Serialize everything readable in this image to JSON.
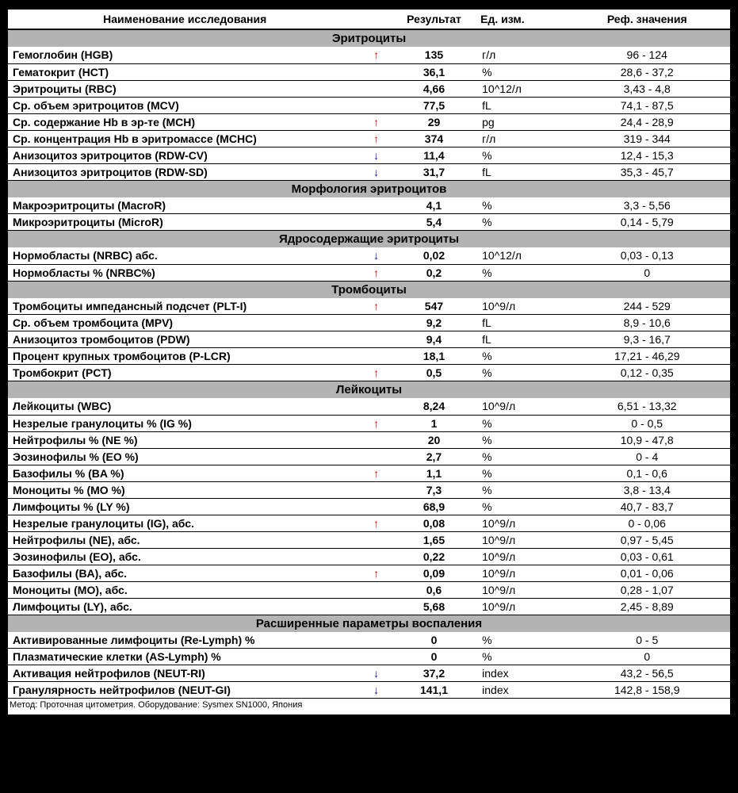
{
  "headers": {
    "name": "Наименование исследования",
    "result": "Результат",
    "unit": "Ед. изм.",
    "ref": "Реф. значения"
  },
  "arrow_glyphs": {
    "up": "↑",
    "down": "↓"
  },
  "arrow_colors": {
    "up": "#e60000",
    "down": "#0000cc"
  },
  "section_bg": "#b3b3b3",
  "sections": [
    {
      "title": "Эритроциты",
      "rows": [
        {
          "name": "Гемоглобин (HGB)",
          "arrow": "up",
          "result": "135",
          "unit": "г/л",
          "ref": "96 - 124"
        },
        {
          "name": "Гематокрит (HCT)",
          "arrow": "",
          "result": "36,1",
          "unit": "%",
          "ref": "28,6 - 37,2"
        },
        {
          "name": "Эритроциты (RBC)",
          "arrow": "",
          "result": "4,66",
          "unit": "10^12/л",
          "ref": "3,43 - 4,8"
        },
        {
          "name": "Ср. объем эритроцитов (MCV)",
          "arrow": "",
          "result": "77,5",
          "unit": "fL",
          "ref": "74,1 - 87,5"
        },
        {
          "name": "Ср. содержание Hb в эр-те (MCH)",
          "arrow": "up",
          "result": "29",
          "unit": "pg",
          "ref": "24,4 - 28,9"
        },
        {
          "name": "Ср. концентрация Hb в эритромассе (MCHC)",
          "arrow": "up",
          "result": "374",
          "unit": "г/л",
          "ref": "319 - 344"
        },
        {
          "name": "Анизоцитоз эритроцитов (RDW-CV)",
          "arrow": "down",
          "result": "11,4",
          "unit": "%",
          "ref": "12,4 - 15,3"
        },
        {
          "name": "Анизоцитоз эритроцитов (RDW-SD)",
          "arrow": "down",
          "result": "31,7",
          "unit": "fL",
          "ref": "35,3 - 45,7"
        }
      ]
    },
    {
      "title": "Морфология эритроцитов",
      "rows": [
        {
          "name": "Макроэритроциты (MacroR)",
          "arrow": "",
          "result": "4,1",
          "unit": "%",
          "ref": "3,3 - 5,56"
        },
        {
          "name": "Микроэритроциты (MicroR)",
          "arrow": "",
          "result": "5,4",
          "unit": "%",
          "ref": "0,14 - 5,79"
        }
      ]
    },
    {
      "title": "Ядросодержащие эритроциты",
      "rows": [
        {
          "name": "Нормобласты (NRBC) абс.",
          "arrow": "down",
          "result": "0,02",
          "unit": "10^12/л",
          "ref": "0,03 - 0,13"
        },
        {
          "name": "Нормобласты % (NRBC%)",
          "arrow": "up",
          "result": "0,2",
          "unit": "%",
          "ref": "0"
        }
      ]
    },
    {
      "title": "Тромбоциты",
      "rows": [
        {
          "name": "Тромбоциты импедансный подсчет (PLT-I)",
          "arrow": "up",
          "result": "547",
          "unit": "10^9/л",
          "ref": "244 - 529"
        },
        {
          "name": "Ср. объем тромбоцита (MPV)",
          "arrow": "",
          "result": "9,2",
          "unit": "fL",
          "ref": "8,9 - 10,6"
        },
        {
          "name": "Анизоцитоз тромбоцитов (PDW)",
          "arrow": "",
          "result": "9,4",
          "unit": "fL",
          "ref": "9,3 - 16,7"
        },
        {
          "name": "Процент крупных тромбоцитов (P-LCR)",
          "arrow": "",
          "result": "18,1",
          "unit": "%",
          "ref": "17,21 - 46,29"
        },
        {
          "name": "Тромбокрит (PCT)",
          "arrow": "up",
          "result": "0,5",
          "unit": "%",
          "ref": "0,12 - 0,35"
        }
      ]
    },
    {
      "title": "Лейкоциты",
      "rows": [
        {
          "name": "Лейкоциты (WBC)",
          "arrow": "",
          "result": "8,24",
          "unit": "10^9/л",
          "ref": "6,51 - 13,32"
        },
        {
          "name": "Незрелые гранулоциты % (IG %)",
          "arrow": "up",
          "result": "1",
          "unit": "%",
          "ref": "0 - 0,5"
        },
        {
          "name": "Нейтрофилы % (NE %)",
          "arrow": "",
          "result": "20",
          "unit": "%",
          "ref": "10,9 - 47,8"
        },
        {
          "name": "Эозинофилы % (EO %)",
          "arrow": "",
          "result": "2,7",
          "unit": "%",
          "ref": "0 - 4"
        },
        {
          "name": "Базофилы % (BA %)",
          "arrow": "up",
          "result": "1,1",
          "unit": "%",
          "ref": "0,1 - 0,6"
        },
        {
          "name": "Моноциты % (MO %)",
          "arrow": "",
          "result": "7,3",
          "unit": "%",
          "ref": "3,8 - 13,4"
        },
        {
          "name": "Лимфоциты % (LY %)",
          "arrow": "",
          "result": "68,9",
          "unit": "%",
          "ref": "40,7 - 83,7"
        },
        {
          "name": "Незрелые гранулоциты (IG), абс.",
          "arrow": "up",
          "result": "0,08",
          "unit": "10^9/л",
          "ref": "0 - 0,06"
        },
        {
          "name": "Нейтрофилы (NE), абс.",
          "arrow": "",
          "result": "1,65",
          "unit": "10^9/л",
          "ref": "0,97 - 5,45"
        },
        {
          "name": "Эозинофилы (EO), абс.",
          "arrow": "",
          "result": "0,22",
          "unit": "10^9/л",
          "ref": "0,03 - 0,61"
        },
        {
          "name": "Базофилы (BA), абс.",
          "arrow": "up",
          "result": "0,09",
          "unit": "10^9/л",
          "ref": "0,01 - 0,06"
        },
        {
          "name": "Моноциты (MO), абс.",
          "arrow": "",
          "result": "0,6",
          "unit": "10^9/л",
          "ref": "0,28 - 1,07"
        },
        {
          "name": "Лимфоциты (LY), абс.",
          "arrow": "",
          "result": "5,68",
          "unit": "10^9/л",
          "ref": "2,45 - 8,89"
        }
      ]
    },
    {
      "title": "Расширенные параметры воспаления",
      "rows": [
        {
          "name": "Активированные лимфоциты (Re-Lymph) %",
          "arrow": "",
          "result": "0",
          "unit": "%",
          "ref": "0 - 5"
        },
        {
          "name": "Плазматические клетки (AS-Lymph) %",
          "arrow": "",
          "result": "0",
          "unit": "%",
          "ref": "0"
        },
        {
          "name": "Активация нейтрофилов (NEUT-RI)",
          "arrow": "down",
          "result": "37,2",
          "unit": "index",
          "ref": "43,2 - 56,5"
        },
        {
          "name": "Гранулярность нейтрофилов (NEUT-GI)",
          "arrow": "down",
          "result": "141,1",
          "unit": "index",
          "ref": "142,8 - 158,9"
        }
      ]
    }
  ],
  "footer": "Метод: Проточная цитометрия. Оборудование: Sysmex SN1000, Япония"
}
